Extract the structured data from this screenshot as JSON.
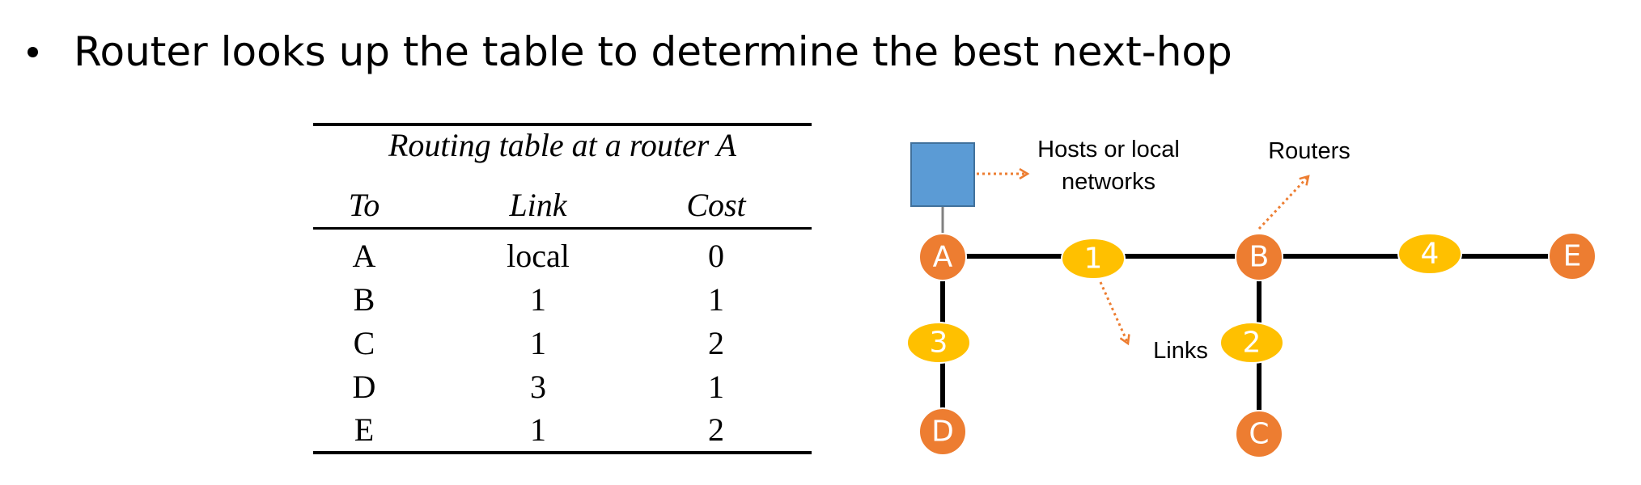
{
  "bullet": {
    "text": "Router looks up the table to determine the best next-hop"
  },
  "routing_table": {
    "caption": "Routing table at a router A",
    "columns": [
      "To",
      "Link",
      "Cost"
    ],
    "rows": [
      [
        "A",
        "local",
        "0"
      ],
      [
        "B",
        "1",
        "1"
      ],
      [
        "C",
        "1",
        "2"
      ],
      [
        "D",
        "3",
        "1"
      ],
      [
        "E",
        "1",
        "2"
      ]
    ]
  },
  "diagram": {
    "routers": [
      "A",
      "B",
      "C",
      "D",
      "E"
    ],
    "links": [
      "1",
      "2",
      "3",
      "4"
    ],
    "edges": [
      {
        "from": "A",
        "to": "B",
        "via": "1"
      },
      {
        "from": "B",
        "to": "C",
        "via": "2"
      },
      {
        "from": "A",
        "to": "D",
        "via": "3"
      },
      {
        "from": "B",
        "to": "E",
        "via": "4"
      }
    ],
    "host_attached_to": "A",
    "labels": {
      "hosts_line1": "Hosts or local",
      "hosts_line2": "networks",
      "routers": "Routers",
      "links": "Links"
    },
    "colors": {
      "router": "#ED7D31",
      "link": "#FFC000",
      "host": "#5B9BD5",
      "annotation_arrow": "#ED7D31"
    }
  }
}
